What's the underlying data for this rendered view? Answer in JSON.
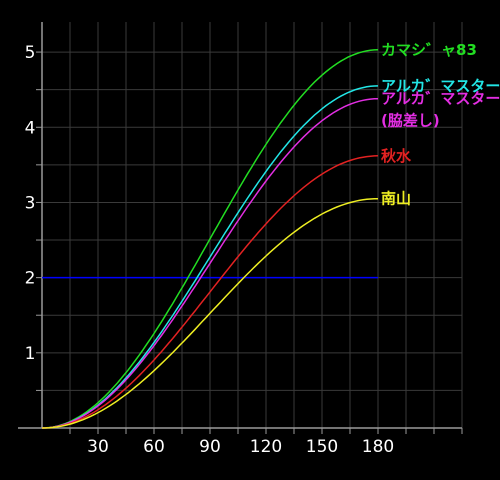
{
  "chart_data": {
    "type": "line",
    "title": "",
    "xlabel": "",
    "ylabel": "",
    "xlim": [
      0,
      225
    ],
    "ylim": [
      0,
      5.4
    ],
    "x_ticks": [
      30,
      60,
      90,
      120,
      150,
      180
    ],
    "y_ticks": [
      1,
      2,
      3,
      4,
      5
    ],
    "grid": true,
    "reference_line": {
      "y": 2,
      "x_end": 180,
      "color": "#0000ff"
    },
    "colors": {
      "background": "#000000",
      "grid": "#3a3a3a",
      "axis": "#9a9a9a",
      "tick_label": "#ffffff"
    },
    "series": [
      {
        "name": "カマシ゛ャ83",
        "color": "#22dd22",
        "label_lines": [
          "カマシ゛ャ83"
        ],
        "max": 5.03,
        "peak_x": 180
      },
      {
        "name": "アルカ゛マスター",
        "color": "#22e6e6",
        "label_lines": [
          "アルカ゛マスター"
        ],
        "max": 4.55,
        "peak_x": 180
      },
      {
        "name": "アルカ゛マスター(脇差し)",
        "color": "#e22ee2",
        "label_lines": [
          "アルカ゛マスター",
          "(脇差し)"
        ],
        "max": 4.38,
        "peak_x": 180
      },
      {
        "name": "秋水",
        "color": "#e22222",
        "label_lines": [
          "秋水"
        ],
        "max": 3.62,
        "peak_x": 180
      },
      {
        "name": "南山",
        "color": "#eeee22",
        "label_lines": [
          "南山"
        ],
        "max": 3.05,
        "peak_x": 180
      }
    ]
  }
}
